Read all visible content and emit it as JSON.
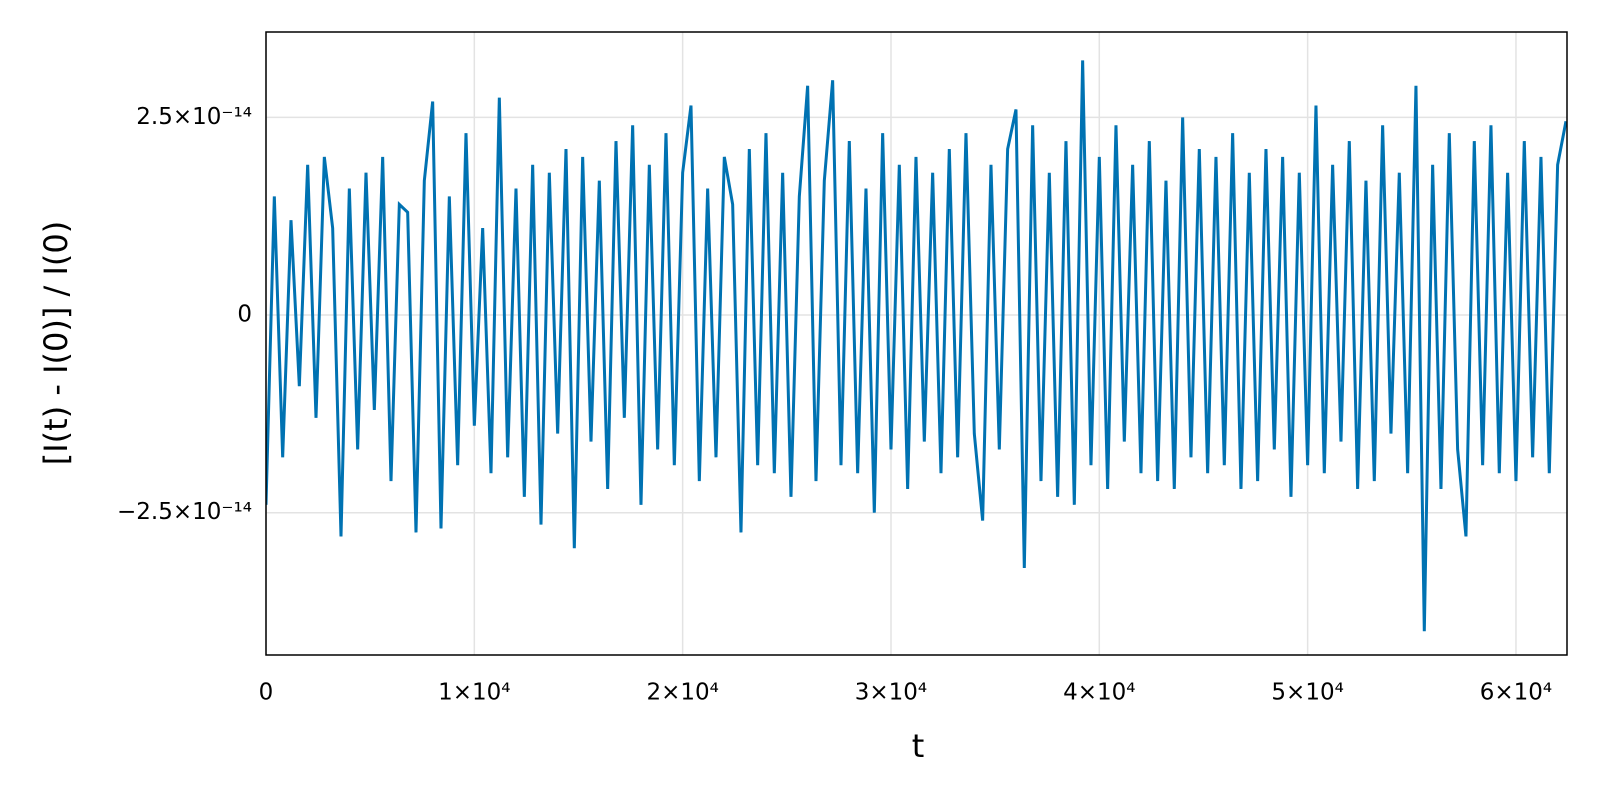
{
  "chart_data": {
    "type": "line",
    "xlabel": "t",
    "ylabel": "[I(t) - I(0)] / I(0)",
    "color": "#0072b2",
    "grid": true,
    "xlim": [
      0,
      62450
    ],
    "ylim": [
      -4.3e-14,
      3.58e-14
    ],
    "xticks": [
      0,
      {
        "value": 10000,
        "label": "1×10⁴"
      },
      {
        "value": 20000,
        "label": "2×10⁴"
      },
      {
        "value": 30000,
        "label": "3×10⁴"
      },
      {
        "value": 40000,
        "label": "4×10⁴"
      },
      {
        "value": 50000,
        "label": "5×10⁴"
      },
      {
        "value": 60000,
        "label": "6×10⁴"
      }
    ],
    "yticks": [
      {
        "value": -2.5e-14,
        "label": "−2.5×10⁻¹⁴"
      },
      0,
      {
        "value": 2.5e-14,
        "label": "2.5×10⁻¹⁴"
      }
    ],
    "x": [
      0,
      400,
      800,
      1200,
      1600,
      2000,
      2400,
      2800,
      3200,
      3600,
      4000,
      4400,
      4800,
      5200,
      5600,
      6000,
      6400,
      6800,
      7200,
      7600,
      8000,
      8400,
      8800,
      9200,
      9600,
      10000,
      10400,
      10800,
      11200,
      11600,
      12000,
      12400,
      12800,
      13200,
      13600,
      14000,
      14400,
      14800,
      15200,
      15600,
      16000,
      16400,
      16800,
      17200,
      17600,
      18000,
      18400,
      18800,
      19200,
      19600,
      20000,
      20400,
      20800,
      21200,
      21600,
      22000,
      22400,
      22800,
      23200,
      23600,
      24000,
      24400,
      24800,
      25200,
      25600,
      26000,
      26400,
      26800,
      27200,
      27600,
      28000,
      28400,
      28800,
      29200,
      29600,
      30000,
      30400,
      30800,
      31200,
      31600,
      32000,
      32400,
      32800,
      33200,
      33600,
      34000,
      34400,
      34800,
      35200,
      35600,
      36000,
      36400,
      36800,
      37200,
      37600,
      38000,
      38400,
      38800,
      39200,
      39600,
      40000,
      40400,
      40800,
      41200,
      41600,
      42000,
      42400,
      42800,
      43200,
      43600,
      44000,
      44400,
      44800,
      45200,
      45600,
      46000,
      46400,
      46800,
      47200,
      47600,
      48000,
      48400,
      48800,
      49200,
      49600,
      50000,
      50400,
      50800,
      51200,
      51600,
      52000,
      52400,
      52800,
      53200,
      53600,
      54000,
      54400,
      54800,
      55200,
      55600,
      56000,
      56400,
      56800,
      57200,
      57600,
      58000,
      58400,
      58800,
      59200,
      59600,
      60000,
      60400,
      60800,
      61200,
      61600,
      62000,
      62400
    ],
    "values": [
      -2.4e-14,
      1.5e-14,
      -1.8e-14,
      1.2e-14,
      -9e-15,
      1.9e-14,
      -1.3e-14,
      2e-14,
      1.1e-14,
      -2.8e-14,
      1.6e-14,
      -1.7e-14,
      1.8e-14,
      -1.2e-14,
      2e-14,
      -2.1e-14,
      1.4e-14,
      1.3e-14,
      -2.75e-14,
      1.7e-14,
      2.7e-14,
      -2.7e-14,
      1.5e-14,
      -1.9e-14,
      2.3e-14,
      -1.4e-14,
      1.1e-14,
      -2e-14,
      2.75e-14,
      -1.8e-14,
      1.6e-14,
      -2.3e-14,
      1.9e-14,
      -2.65e-14,
      1.8e-14,
      -1.5e-14,
      2.1e-14,
      -2.95e-14,
      2e-14,
      -1.6e-14,
      1.7e-14,
      -2.2e-14,
      2.2e-14,
      -1.3e-14,
      2.4e-14,
      -2.4e-14,
      1.9e-14,
      -1.7e-14,
      2.3e-14,
      -1.9e-14,
      1.8e-14,
      2.65e-14,
      -2.1e-14,
      1.6e-14,
      -1.8e-14,
      2e-14,
      1.4e-14,
      -2.75e-14,
      2.1e-14,
      -1.9e-14,
      2.3e-14,
      -2e-14,
      1.8e-14,
      -2.3e-14,
      1.5e-14,
      2.9e-14,
      -2.1e-14,
      1.7e-14,
      2.97e-14,
      -1.9e-14,
      2.2e-14,
      -2e-14,
      1.6e-14,
      -2.5e-14,
      2.3e-14,
      -1.7e-14,
      1.9e-14,
      -2.2e-14,
      2e-14,
      -1.6e-14,
      1.8e-14,
      -2e-14,
      2.1e-14,
      -1.8e-14,
      2.3e-14,
      -1.5e-14,
      -2.6e-14,
      1.9e-14,
      -1.7e-14,
      2.1e-14,
      2.6e-14,
      -3.2e-14,
      2.4e-14,
      -2.1e-14,
      1.8e-14,
      -2.3e-14,
      2.2e-14,
      -2.4e-14,
      3.22e-14,
      -1.9e-14,
      2e-14,
      -2.2e-14,
      2.4e-14,
      -1.6e-14,
      1.9e-14,
      -2e-14,
      2.2e-14,
      -2.1e-14,
      1.7e-14,
      -2.2e-14,
      2.5e-14,
      -1.8e-14,
      2.1e-14,
      -2e-14,
      2e-14,
      -1.9e-14,
      2.3e-14,
      -2.2e-14,
      1.8e-14,
      -2.1e-14,
      2.1e-14,
      -1.7e-14,
      2e-14,
      -2.3e-14,
      1.8e-14,
      -1.9e-14,
      2.65e-14,
      -2e-14,
      1.9e-14,
      -1.6e-14,
      2.2e-14,
      -2.2e-14,
      1.7e-14,
      -2.1e-14,
      2.4e-14,
      -1.5e-14,
      1.8e-14,
      -2e-14,
      2.9e-14,
      -4e-14,
      1.9e-14,
      -2.2e-14,
      2.3e-14,
      -1.7e-14,
      -2.8e-14,
      2.2e-14,
      -1.9e-14,
      2.4e-14,
      -2e-14,
      1.8e-14,
      -2.1e-14,
      2.2e-14,
      -1.8e-14,
      2e-14,
      -2e-14,
      1.9e-14,
      2.45e-14
    ]
  }
}
